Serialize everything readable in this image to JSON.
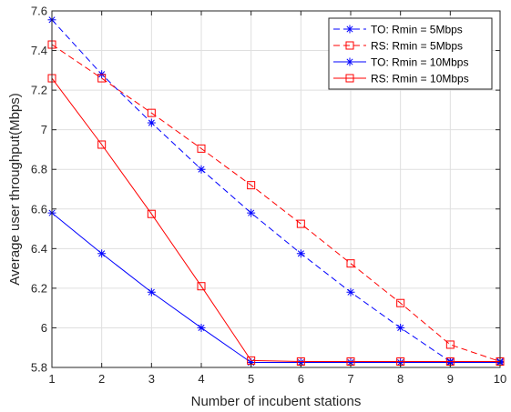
{
  "chart_data": {
    "type": "line",
    "title": "",
    "xlabel": "Number of incubent stations",
    "ylabel": "Average user throughput(Mbps)",
    "x": [
      1,
      2,
      3,
      4,
      5,
      6,
      7,
      8,
      9,
      10
    ],
    "xlim": [
      1,
      10
    ],
    "ylim": [
      5.8,
      7.6
    ],
    "xticks": [
      "1",
      "2",
      "3",
      "4",
      "5",
      "6",
      "7",
      "8",
      "9",
      "10"
    ],
    "yticks": [
      "5.8",
      "6",
      "6.2",
      "6.4",
      "6.6",
      "6.8",
      "7",
      "7.2",
      "7.4",
      "7.6"
    ],
    "grid": true,
    "legend_position": "top-right",
    "series": [
      {
        "name": "TO: Rmin = 5Mbps",
        "color": "#0000ff",
        "line": "dashed",
        "marker": "asterisk",
        "values": [
          7.555,
          7.28,
          7.035,
          6.8,
          6.58,
          6.375,
          6.18,
          6.0,
          5.83,
          5.83
        ]
      },
      {
        "name": "RS: Rmin = 5Mbps",
        "color": "#ff0000",
        "line": "dashed",
        "marker": "square",
        "values": [
          7.43,
          7.26,
          7.085,
          6.905,
          6.72,
          6.525,
          6.325,
          6.125,
          5.915,
          5.83
        ]
      },
      {
        "name": "TO: Rmin = 10Mbps",
        "color": "#0000ff",
        "line": "solid",
        "marker": "asterisk",
        "values": [
          6.58,
          6.375,
          6.18,
          6.0,
          5.825,
          5.825,
          5.825,
          5.825,
          5.825,
          5.825
        ]
      },
      {
        "name": "RS: Rmin = 10Mbps",
        "color": "#ff0000",
        "line": "solid",
        "marker": "square",
        "values": [
          7.26,
          6.925,
          6.575,
          6.21,
          5.835,
          5.83,
          5.83,
          5.83,
          5.83,
          5.83
        ]
      }
    ]
  }
}
